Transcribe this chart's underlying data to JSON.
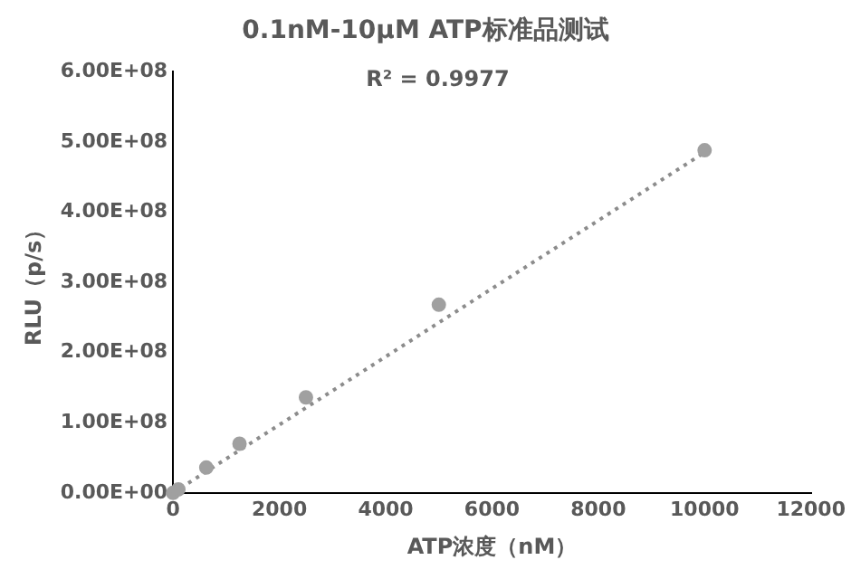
{
  "chart_data": {
    "type": "scatter",
    "title": "0.1nM-10μM ATP标准品测试",
    "xlabel": "ATP浓度（nM）",
    "ylabel": "RLU（p/s）",
    "annotations": [
      "R² = 0.9977"
    ],
    "xlim": [
      0,
      12000
    ],
    "xticks": [
      0,
      2000,
      4000,
      6000,
      8000,
      10000,
      12000
    ],
    "ylim": [
      0,
      600000000
    ],
    "yticks": [
      {
        "value": 0,
        "label": "0.00E+00"
      },
      {
        "value": 100000000,
        "label": "1.00E+08"
      },
      {
        "value": 200000000,
        "label": "2.00E+08"
      },
      {
        "value": 300000000,
        "label": "3.00E+08"
      },
      {
        "value": 400000000,
        "label": "4.00E+08"
      },
      {
        "value": 500000000,
        "label": "5.00E+08"
      },
      {
        "value": 600000000,
        "label": "6.00E+08"
      }
    ],
    "grid": false,
    "legend": false,
    "marker": "circle",
    "series": [
      {
        "color": "#a0a0a0",
        "x": [
          0,
          100,
          625,
          1250,
          2500,
          5000,
          10000
        ],
        "values": [
          0,
          5000000,
          36000000,
          70000000,
          136000000,
          268000000,
          488000000
        ]
      },
      {
        "type": "line",
        "line_style": "dotted",
        "marker": "none",
        "color": "#8c8c8c",
        "x": [
          0,
          10000
        ],
        "values": [
          0,
          485000000
        ]
      }
    ]
  }
}
